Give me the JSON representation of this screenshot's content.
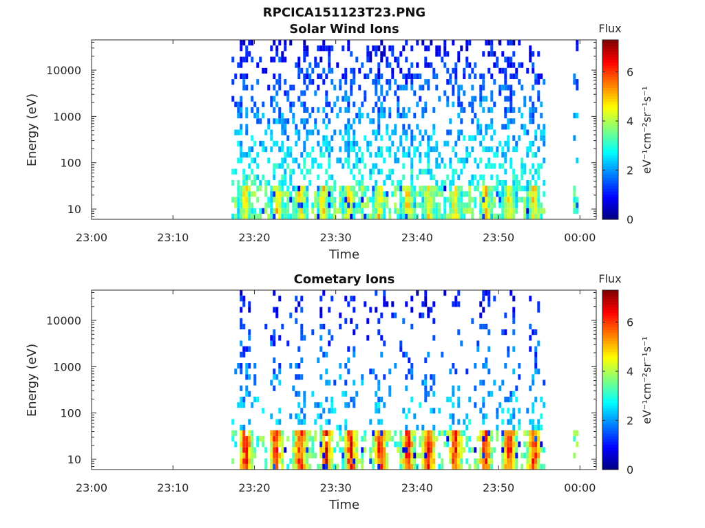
{
  "figure": {
    "title": "RPCICA151123T23.PNG"
  },
  "chart_data": [
    {
      "type": "heatmap",
      "title": "Solar Wind Ions",
      "xlabel": "Time",
      "ylabel": "Energy (eV)",
      "x_ticks": [
        "23:00",
        "23:10",
        "23:20",
        "23:30",
        "23:40",
        "23:50",
        "00:00"
      ],
      "x_range_minutes": [
        0,
        62
      ],
      "y_scale": "log",
      "y_ticks": [
        "10",
        "100",
        "1000",
        "10000"
      ],
      "y_range": [
        6,
        45000
      ],
      "data_start_minute": 17.2,
      "data_end_minute": 55.5,
      "late_burst_minute": 59.5,
      "colorbar": {
        "title": "Flux",
        "label": "eV⁻¹cm⁻²sr⁻¹s⁻¹",
        "ticks": [
          "0",
          "2",
          "4",
          "6"
        ],
        "range": [
          0,
          7.3
        ],
        "colormap": "jet"
      },
      "low_energy_band": {
        "energy_range_eV": [
          6,
          30
        ],
        "peak_flux": 5.5,
        "burst_minutes": [
          18.7,
          22.7,
          25.5,
          28.3,
          31.5,
          35.2,
          38.7,
          41.3,
          44.5,
          48.3,
          51.2,
          54.2
        ]
      },
      "scatter_density_high_energy": "dense"
    },
    {
      "type": "heatmap",
      "title": "Cometary Ions",
      "xlabel": "Time",
      "ylabel": "Energy (eV)",
      "x_ticks": [
        "23:00",
        "23:10",
        "23:20",
        "23:30",
        "23:40",
        "23:50",
        "00:00"
      ],
      "x_range_minutes": [
        0,
        62
      ],
      "y_scale": "log",
      "y_ticks": [
        "10",
        "100",
        "1000",
        "10000"
      ],
      "y_range": [
        6,
        45000
      ],
      "data_start_minute": 17.2,
      "data_end_minute": 55.5,
      "late_burst_minute": 59.5,
      "colorbar": {
        "title": "Flux",
        "label": "eV⁻¹cm⁻²sr⁻¹s⁻¹",
        "ticks": [
          "0",
          "2",
          "4",
          "6"
        ],
        "range": [
          0,
          7.3
        ],
        "colormap": "jet"
      },
      "low_energy_band": {
        "energy_range_eV": [
          6,
          40
        ],
        "peak_flux": 7.0,
        "burst_minutes": [
          18.8,
          22.5,
          25.5,
          28.7,
          31.7,
          35.3,
          38.7,
          41.3,
          44.5,
          48.2,
          51.2,
          54.2
        ]
      },
      "scatter_density_high_energy": "sparse"
    }
  ]
}
